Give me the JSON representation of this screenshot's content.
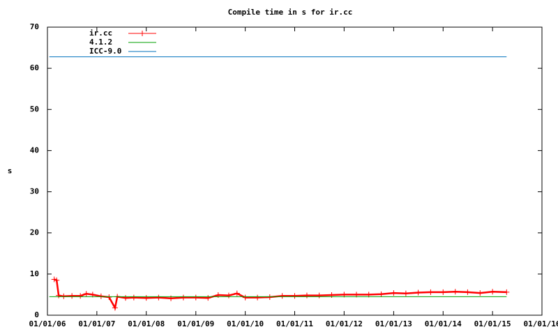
{
  "chart_data": {
    "type": "line",
    "title": "Compile time in s for ir.cc",
    "y_label": "s",
    "xlim": [
      "2006-01-01",
      "2016-01-01"
    ],
    "xticks": [
      {
        "value": "2006-01-01",
        "label": "01/01/06"
      },
      {
        "value": "2007-01-01",
        "label": "01/01/07"
      },
      {
        "value": "2008-01-01",
        "label": "01/01/08"
      },
      {
        "value": "2009-01-01",
        "label": "01/01/09"
      },
      {
        "value": "2010-01-01",
        "label": "01/01/10"
      },
      {
        "value": "2011-01-01",
        "label": "01/01/11"
      },
      {
        "value": "2012-01-01",
        "label": "01/01/12"
      },
      {
        "value": "2013-01-01",
        "label": "01/01/13"
      },
      {
        "value": "2014-01-01",
        "label": "01/01/14"
      },
      {
        "value": "2015-01-01",
        "label": "01/01/15"
      },
      {
        "value": "2016-01-01",
        "label": "01/01/16"
      }
    ],
    "ylim": [
      0,
      70
    ],
    "yticks": [
      0,
      10,
      20,
      30,
      40,
      50,
      60,
      70
    ],
    "legend": "top-left",
    "series": [
      {
        "name": "ir.cc",
        "color": "#ff0000",
        "marker": "plus",
        "x": [
          "2006-02-20",
          "2006-03-10",
          "2006-03-25",
          "2006-05-01",
          "2006-07-01",
          "2006-09-01",
          "2006-10-15",
          "2006-12-01",
          "2007-02-01",
          "2007-04-01",
          "2007-05-15",
          "2007-06-01",
          "2007-08-01",
          "2007-10-01",
          "2008-01-01",
          "2008-04-01",
          "2008-07-01",
          "2008-10-01",
          "2009-01-01",
          "2009-04-01",
          "2009-06-15",
          "2009-09-01",
          "2009-11-01",
          "2010-01-01",
          "2010-04-01",
          "2010-07-01",
          "2010-10-01",
          "2011-01-01",
          "2011-04-01",
          "2011-07-01",
          "2011-10-01",
          "2012-01-01",
          "2012-04-01",
          "2012-07-01",
          "2012-10-01",
          "2013-01-01",
          "2013-04-01",
          "2013-07-01",
          "2013-10-01",
          "2014-01-01",
          "2014-04-01",
          "2014-07-01",
          "2014-10-01",
          "2015-01-01",
          "2015-04-15"
        ],
        "values": [
          8.7,
          8.5,
          4.8,
          4.6,
          4.7,
          4.7,
          5.2,
          5.0,
          4.6,
          4.4,
          1.8,
          4.5,
          4.2,
          4.3,
          4.2,
          4.3,
          4.1,
          4.3,
          4.3,
          4.2,
          4.9,
          4.8,
          5.3,
          4.3,
          4.3,
          4.4,
          4.7,
          4.7,
          4.8,
          4.8,
          4.9,
          5.0,
          5.0,
          5.0,
          5.1,
          5.4,
          5.3,
          5.5,
          5.6,
          5.6,
          5.7,
          5.6,
          5.4,
          5.7,
          5.6
        ]
      },
      {
        "name": "4.1.2",
        "color": "#00a000",
        "x": [
          "2006-01-15",
          "2015-04-15"
        ],
        "values": [
          4.5,
          4.5
        ]
      },
      {
        "name": "ICC-9.0",
        "color": "#0072bd",
        "x": [
          "2006-01-15",
          "2015-04-15"
        ],
        "values": [
          62.8,
          62.8
        ]
      }
    ]
  }
}
